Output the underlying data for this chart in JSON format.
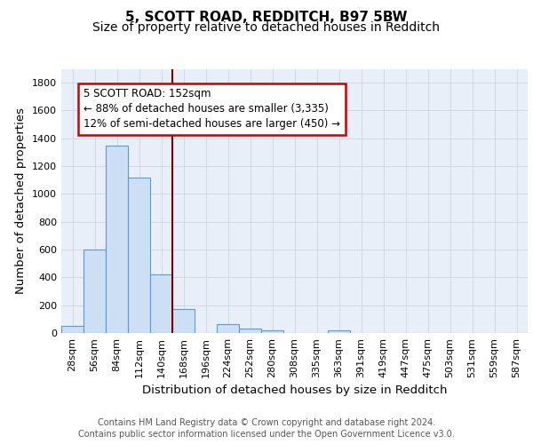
{
  "title": "5, SCOTT ROAD, REDDITCH, B97 5BW",
  "subtitle": "Size of property relative to detached houses in Redditch",
  "xlabel": "Distribution of detached houses by size in Redditch",
  "ylabel": "Number of detached properties",
  "footer_line1": "Contains HM Land Registry data © Crown copyright and database right 2024.",
  "footer_line2": "Contains public sector information licensed under the Open Government Licence v3.0.",
  "bin_labels": [
    "28sqm",
    "56sqm",
    "84sqm",
    "112sqm",
    "140sqm",
    "168sqm",
    "196sqm",
    "224sqm",
    "252sqm",
    "280sqm",
    "308sqm",
    "335sqm",
    "363sqm",
    "391sqm",
    "419sqm",
    "447sqm",
    "475sqm",
    "503sqm",
    "531sqm",
    "559sqm",
    "587sqm"
  ],
  "bar_values": [
    50,
    600,
    1350,
    1120,
    420,
    175,
    0,
    65,
    35,
    20,
    0,
    0,
    20,
    0,
    0,
    0,
    0,
    0,
    0,
    0,
    0
  ],
  "bar_color": "#ccdff5",
  "bar_edge_color": "#5b9bd5",
  "grid_color": "#ccd6e0",
  "background_color": "#e8eff8",
  "vline_color": "#800000",
  "ylim": [
    0,
    1900
  ],
  "yticks": [
    0,
    200,
    400,
    600,
    800,
    1000,
    1200,
    1400,
    1600,
    1800
  ],
  "annotation_line1": "5 SCOTT ROAD: 152sqm",
  "annotation_line2": "← 88% of detached houses are smaller (3,335)",
  "annotation_line3": "12% of semi-detached houses are larger (450) →",
  "annotation_box_color": "#ffffff",
  "annotation_box_edge": "#cc0000",
  "title_fontsize": 11,
  "subtitle_fontsize": 10,
  "axis_label_fontsize": 9.5,
  "tick_fontsize": 8,
  "footer_fontsize": 7,
  "annot_fontsize": 8.5
}
